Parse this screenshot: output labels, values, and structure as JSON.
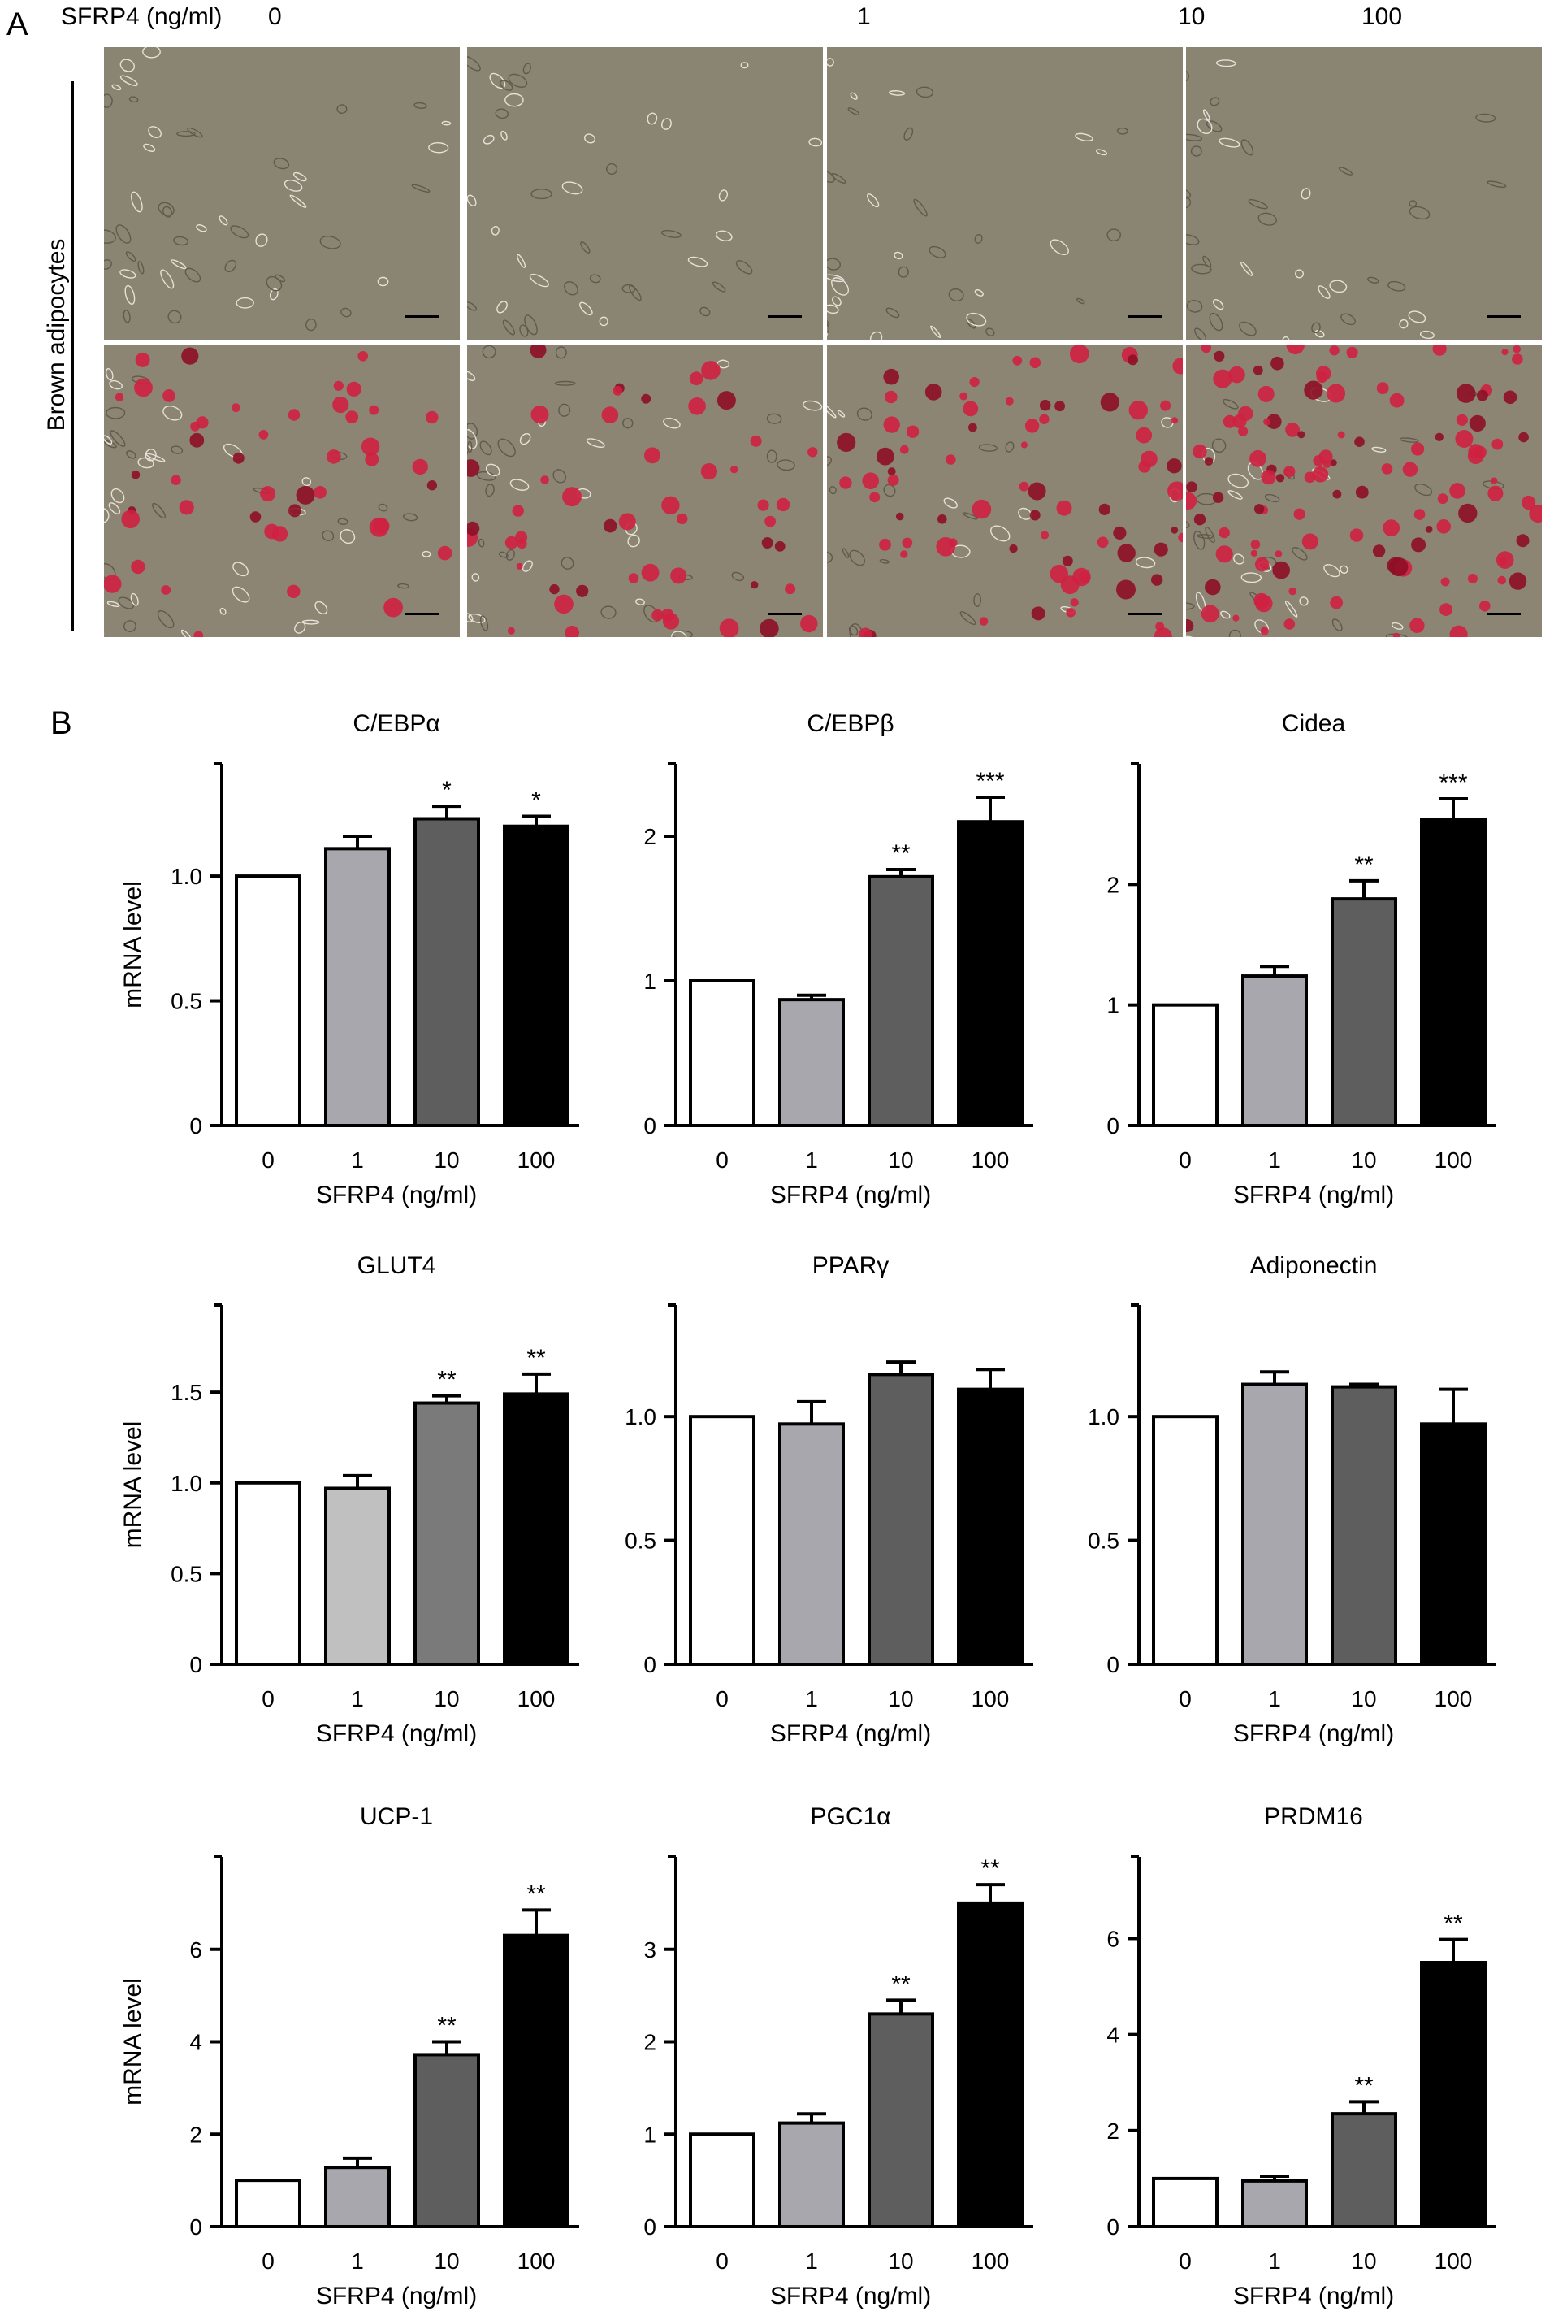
{
  "panel_a": {
    "letter": "A",
    "treatment_header": "SFRP4 (ng/ml)",
    "concentrations": [
      "0",
      "1",
      "10",
      "100"
    ],
    "row_label": "Brown adipocytes",
    "rows": [
      {
        "stain": "none",
        "tint": "#8a8572"
      },
      {
        "stain": "oil-red-o",
        "tint": "#8d8574",
        "accent": "#cf2040"
      }
    ]
  },
  "panel_b": {
    "letter": "B",
    "bar_colors": {
      "0": "#ffffff",
      "1": "#a7a7ad",
      "10": "#5e5e5e",
      "100": "#000000"
    },
    "glut4_bar1_color": "#c0c0c0",
    "glut4_bar10_color": "#7a7a7a"
  },
  "chart_data": [
    {
      "type": "bar",
      "title": "C/EBPα",
      "categories": [
        "0",
        "1",
        "10",
        "100"
      ],
      "values": [
        1.0,
        1.11,
        1.23,
        1.2
      ],
      "errors": [
        0,
        0.05,
        0.05,
        0.04
      ],
      "significance": [
        "",
        "",
        "*",
        "*"
      ],
      "ylabel": "mRNA level",
      "xlabel": "SFRP4 (ng/ml)",
      "ylim": [
        0,
        1.45
      ],
      "yticks": [
        0,
        0.5,
        1.0
      ],
      "ytick_labels": [
        "0",
        "0.5",
        "1.0"
      ]
    },
    {
      "type": "bar",
      "title": "C/EBPβ",
      "categories": [
        "0",
        "1",
        "10",
        "100"
      ],
      "values": [
        1.0,
        0.87,
        1.72,
        2.1
      ],
      "errors": [
        0,
        0.03,
        0.05,
        0.17
      ],
      "significance": [
        "",
        "",
        "**",
        "***"
      ],
      "ylabel": "",
      "xlabel": "SFRP4 (ng/ml)",
      "ylim": [
        0,
        2.5
      ],
      "yticks": [
        0,
        1,
        2
      ],
      "ytick_labels": [
        "0",
        "1",
        "2"
      ]
    },
    {
      "type": "bar",
      "title": "Cidea",
      "categories": [
        "0",
        "1",
        "10",
        "100"
      ],
      "values": [
        1.0,
        1.24,
        1.88,
        2.54
      ],
      "errors": [
        0,
        0.08,
        0.15,
        0.17
      ],
      "significance": [
        "",
        "",
        "**",
        "***"
      ],
      "ylabel": "",
      "xlabel": "SFRP4 (ng/ml)",
      "ylim": [
        0,
        3.0
      ],
      "yticks": [
        0,
        1,
        2
      ],
      "ytick_labels": [
        "0",
        "1",
        "2"
      ]
    },
    {
      "type": "bar",
      "title": "GLUT4",
      "categories": [
        "0",
        "1",
        "10",
        "100"
      ],
      "values": [
        1.0,
        0.97,
        1.44,
        1.49
      ],
      "errors": [
        0,
        0.07,
        0.04,
        0.11
      ],
      "significance": [
        "",
        "",
        "**",
        "**"
      ],
      "ylabel": "mRNA level",
      "xlabel": "SFRP4 (ng/ml)",
      "ylim": [
        0,
        1.98
      ],
      "yticks": [
        0,
        0.5,
        1.0,
        1.5
      ],
      "ytick_labels": [
        "0",
        "0.5",
        "1.0",
        "1.5"
      ]
    },
    {
      "type": "bar",
      "title": "PPARγ",
      "categories": [
        "0",
        "1",
        "10",
        "100"
      ],
      "values": [
        1.0,
        0.97,
        1.17,
        1.11
      ],
      "errors": [
        0,
        0.09,
        0.05,
        0.08
      ],
      "significance": [
        "",
        "",
        "",
        ""
      ],
      "ylabel": "",
      "xlabel": "SFRP4 (ng/ml)",
      "ylim": [
        0,
        1.45
      ],
      "yticks": [
        0,
        0.5,
        1.0
      ],
      "ytick_labels": [
        "0",
        "0.5",
        "1.0"
      ]
    },
    {
      "type": "bar",
      "title": "Adiponectin",
      "categories": [
        "0",
        "1",
        "10",
        "100"
      ],
      "values": [
        1.0,
        1.13,
        1.12,
        0.97
      ],
      "errors": [
        0,
        0.05,
        0.01,
        0.14
      ],
      "significance": [
        "",
        "",
        "",
        ""
      ],
      "ylabel": "",
      "xlabel": "SFRP4 (ng/ml)",
      "ylim": [
        0,
        1.45
      ],
      "yticks": [
        0,
        0.5,
        1.0
      ],
      "ytick_labels": [
        "0",
        "0.5",
        "1.0"
      ]
    },
    {
      "type": "bar",
      "title": "UCP-1",
      "categories": [
        "0",
        "1",
        "10",
        "100"
      ],
      "values": [
        1.0,
        1.28,
        3.72,
        6.3
      ],
      "errors": [
        0,
        0.2,
        0.28,
        0.55
      ],
      "significance": [
        "",
        "",
        "**",
        "**"
      ],
      "ylabel": "mRNA level",
      "xlabel": "SFRP4 (ng/ml)",
      "ylim": [
        0,
        8.0
      ],
      "yticks": [
        0,
        2,
        4,
        6
      ],
      "ytick_labels": [
        "0",
        "2",
        "4",
        "6"
      ]
    },
    {
      "type": "bar",
      "title": "PGC1α",
      "categories": [
        "0",
        "1",
        "10",
        "100"
      ],
      "values": [
        1.0,
        1.12,
        2.3,
        3.5
      ],
      "errors": [
        0,
        0.1,
        0.15,
        0.2
      ],
      "significance": [
        "",
        "",
        "**",
        "**"
      ],
      "ylabel": "",
      "xlabel": "SFRP4 (ng/ml)",
      "ylim": [
        0,
        4.0
      ],
      "yticks": [
        0,
        1,
        2,
        3
      ],
      "ytick_labels": [
        "0",
        "1",
        "2",
        "3"
      ]
    },
    {
      "type": "bar",
      "title": "PRDM16",
      "categories": [
        "0",
        "1",
        "10",
        "100"
      ],
      "values": [
        1.0,
        0.95,
        2.35,
        5.5
      ],
      "errors": [
        0,
        0.1,
        0.25,
        0.48
      ],
      "significance": [
        "",
        "",
        "**",
        "**"
      ],
      "ylabel": "",
      "xlabel": "SFRP4 (ng/ml)",
      "ylim": [
        0,
        7.7
      ],
      "yticks": [
        0,
        2,
        4,
        6
      ],
      "ytick_labels": [
        "0",
        "2",
        "4",
        "6"
      ]
    }
  ]
}
